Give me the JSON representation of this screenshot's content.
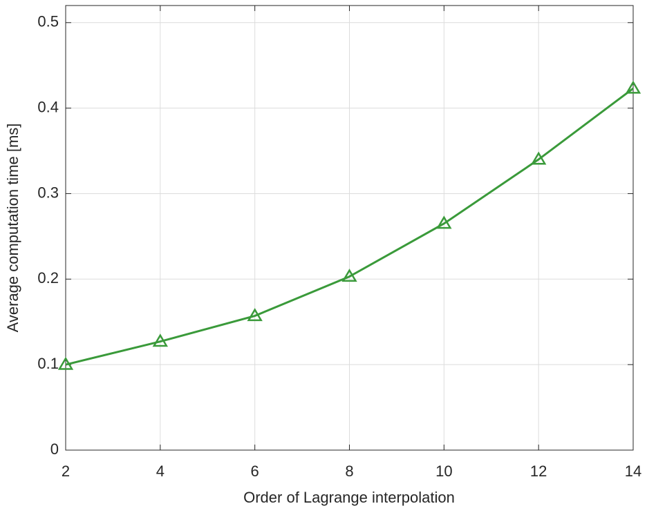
{
  "chart_data": {
    "type": "line",
    "xlabel": "Order of Lagrange interpolation",
    "ylabel": "Average computation time [ms]",
    "x": [
      2,
      4,
      6,
      8,
      10,
      12,
      14
    ],
    "series": [
      {
        "color": "#3a9a3a",
        "marker": "triangle",
        "values": [
          0.1,
          0.127,
          0.157,
          0.203,
          0.265,
          0.34,
          0.423
        ]
      }
    ],
    "xlim": [
      2,
      14
    ],
    "xticks": [
      2,
      4,
      6,
      8,
      10,
      12,
      14
    ],
    "ylim": [
      0,
      0.52
    ],
    "yticks": [
      0,
      0.1,
      0.2,
      0.3,
      0.4,
      0.5
    ],
    "grid": true
  }
}
